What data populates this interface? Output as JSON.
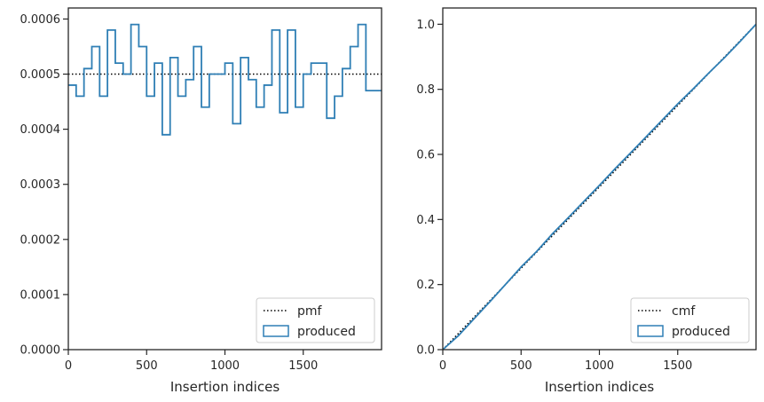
{
  "chart_data": [
    {
      "type": "step",
      "xlabel": "Insertion indices",
      "ylabel": "",
      "xlim": [
        0,
        2000
      ],
      "ylim": [
        0,
        0.00062
      ],
      "xticks": [
        0,
        500,
        1000,
        1500
      ],
      "xtick_labels": [
        "0",
        "500",
        "1000",
        "1500"
      ],
      "yticks": [
        0,
        0.0001,
        0.0002,
        0.0003,
        0.0004,
        0.0005,
        0.0006
      ],
      "ytick_labels": [
        "0.0000",
        "0.0001",
        "0.0002",
        "0.0003",
        "0.0004",
        "0.0005",
        "0.0006"
      ],
      "legend_position": "lower-right",
      "series": [
        {
          "name": "pmf",
          "style": "dotted",
          "color": "#000000",
          "x": [
            0,
            2000
          ],
          "y": [
            0.0005,
            0.0005
          ]
        },
        {
          "name": "produced",
          "style": "step-histogram",
          "color": "#2f7fb5",
          "bin_width": 50,
          "values": [
            0.00048,
            0.00046,
            0.00051,
            0.00055,
            0.00046,
            0.00058,
            0.00052,
            0.0005,
            0.00059,
            0.00055,
            0.00046,
            0.00052,
            0.00039,
            0.00053,
            0.00046,
            0.00049,
            0.00055,
            0.00044,
            0.0005,
            0.0005,
            0.00052,
            0.00041,
            0.00053,
            0.00049,
            0.00044,
            0.00048,
            0.00058,
            0.00043,
            0.00058,
            0.00044,
            0.0005,
            0.00052,
            0.00052,
            0.00042,
            0.00046,
            0.00051,
            0.00055,
            0.00059,
            0.00047,
            0.00047
          ]
        }
      ]
    },
    {
      "type": "line",
      "xlabel": "Insertion indices",
      "ylabel": "",
      "xlim": [
        0,
        2000
      ],
      "ylim": [
        0,
        1.05
      ],
      "xticks": [
        0,
        500,
        1000,
        1500
      ],
      "xtick_labels": [
        "0",
        "500",
        "1000",
        "1500"
      ],
      "yticks": [
        0,
        0.2,
        0.4,
        0.6,
        0.8,
        1.0
      ],
      "ytick_labels": [
        "0.0",
        "0.2",
        "0.4",
        "0.6",
        "0.8",
        "1.0"
      ],
      "legend_position": "lower-right",
      "series": [
        {
          "name": "cmf",
          "style": "dotted",
          "color": "#000000",
          "x": [
            0,
            2000
          ],
          "y": [
            0,
            1.0
          ]
        },
        {
          "name": "produced",
          "style": "solid",
          "color": "#2f7fb5",
          "x": [
            0,
            100,
            200,
            300,
            400,
            500,
            600,
            700,
            800,
            900,
            1000,
            1100,
            1200,
            1300,
            1400,
            1500,
            1600,
            1700,
            1800,
            1900,
            2000
          ],
          "y": [
            0,
            0.043,
            0.095,
            0.147,
            0.2,
            0.254,
            0.302,
            0.356,
            0.405,
            0.455,
            0.505,
            0.556,
            0.605,
            0.655,
            0.705,
            0.755,
            0.802,
            0.851,
            0.898,
            0.948,
            1.0
          ]
        }
      ]
    }
  ]
}
